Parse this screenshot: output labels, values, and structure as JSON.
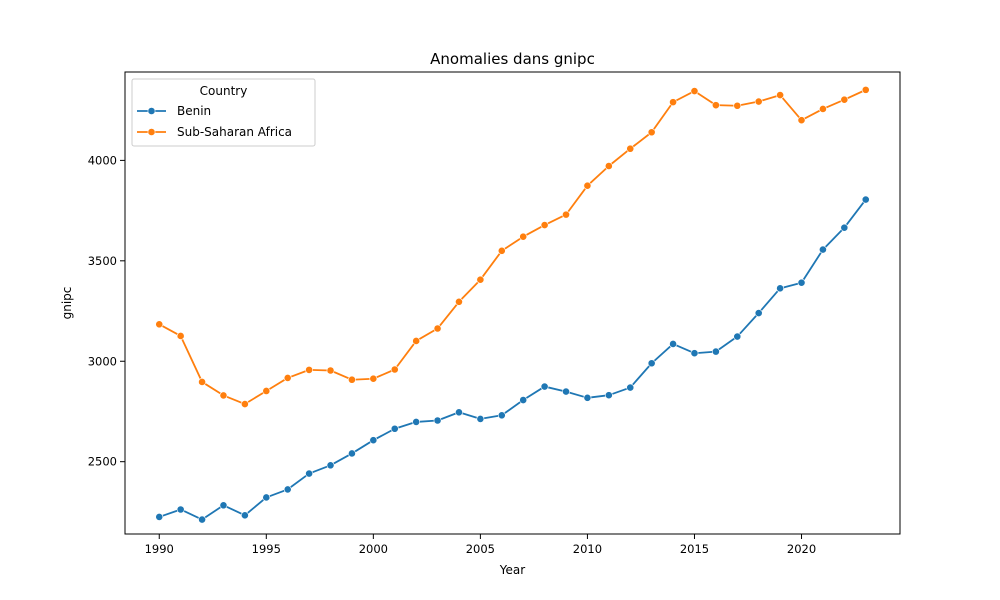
{
  "chart_data": {
    "type": "line",
    "title": "Anomalies dans gnipc",
    "xlabel": "Year",
    "ylabel": "gnipc",
    "xlim": [
      1988.4,
      2024.6
    ],
    "ylim": [
      2140,
      4440
    ],
    "xticks": [
      1990,
      1995,
      2000,
      2005,
      2010,
      2015,
      2020
    ],
    "yticks": [
      2500,
      3000,
      3500,
      4000
    ],
    "grid": false,
    "legend": {
      "title": "Country",
      "position": "top-left"
    },
    "x": [
      1990,
      1991,
      1992,
      1993,
      1994,
      1995,
      1996,
      1997,
      1998,
      1999,
      2000,
      2001,
      2002,
      2003,
      2004,
      2005,
      2006,
      2007,
      2008,
      2009,
      2010,
      2011,
      2012,
      2013,
      2014,
      2015,
      2016,
      2017,
      2018,
      2019,
      2020,
      2021,
      2022,
      2023
    ],
    "series": [
      {
        "name": "Benin",
        "color": "#1f77b4",
        "values": [
          2225,
          2262,
          2212,
          2283,
          2233,
          2322,
          2362,
          2441,
          2482,
          2541,
          2607,
          2664,
          2698,
          2705,
          2746,
          2713,
          2731,
          2807,
          2874,
          2849,
          2818,
          2831,
          2869,
          2990,
          3086,
          3040,
          3048,
          3123,
          3240,
          3363,
          3391,
          3556,
          3665,
          3805
        ]
      },
      {
        "name": "Sub-Saharan Africa",
        "color": "#ff7f0e",
        "values": [
          3184,
          3126,
          2897,
          2830,
          2787,
          2852,
          2917,
          2957,
          2954,
          2908,
          2913,
          2959,
          3101,
          3163,
          3296,
          3406,
          3550,
          3620,
          3678,
          3730,
          3874,
          3972,
          4058,
          4140,
          4290,
          4345,
          4275,
          4272,
          4293,
          4325,
          4200,
          4256,
          4302,
          4351
        ]
      }
    ]
  }
}
